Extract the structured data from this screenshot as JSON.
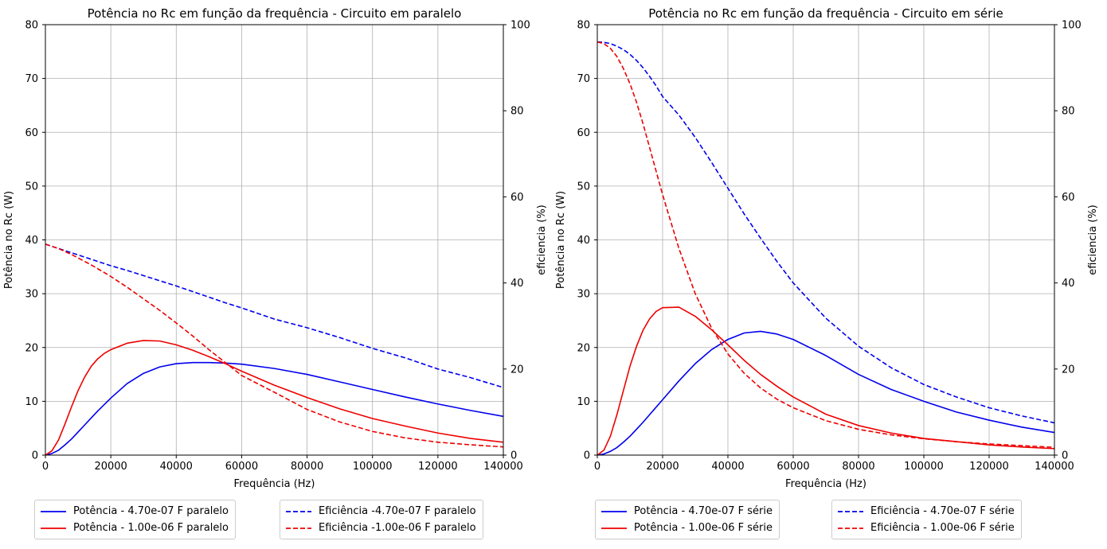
{
  "chart_data": [
    {
      "type": "line",
      "title": "Potência no Rc em função da frequência - Circuito em paralelo",
      "xlabel": "Frequência (Hz)",
      "ylabel": "Potência no Rc (W)",
      "y2label": "eficiencia (%)",
      "xlim": [
        0,
        140000
      ],
      "ylim": [
        0,
        80
      ],
      "y2lim": [
        0,
        100
      ],
      "xticks": [
        0,
        20000,
        40000,
        60000,
        80000,
        100000,
        120000,
        140000
      ],
      "yticks": [
        0,
        10,
        20,
        30,
        40,
        50,
        60,
        70,
        80
      ],
      "y2ticks": [
        0,
        20,
        40,
        60,
        80,
        100
      ],
      "grid": true,
      "legend_left_pos": "below-left",
      "legend_right_pos": "below-right",
      "x": [
        0,
        2000,
        4000,
        6000,
        8000,
        10000,
        12000,
        14000,
        16000,
        18000,
        20000,
        25000,
        30000,
        35000,
        40000,
        45000,
        50000,
        55000,
        60000,
        70000,
        80000,
        90000,
        100000,
        110000,
        120000,
        130000,
        140000
      ],
      "series": [
        {
          "name": "Potência - 4.70e-07 F paralelo",
          "axis": "left",
          "color": "#0000ee",
          "dash": "solid",
          "values": [
            0,
            0.3,
            0.9,
            1.9,
            3.0,
            4.3,
            5.6,
            6.9,
            8.2,
            9.4,
            10.6,
            13.3,
            15.2,
            16.4,
            17.0,
            17.2,
            17.2,
            17.1,
            16.9,
            16.1,
            15.0,
            13.6,
            12.2,
            10.8,
            9.5,
            8.3,
            7.2
          ]
        },
        {
          "name": "Potência - 1.00e-06 F paralelo",
          "axis": "left",
          "color": "#ee0000",
          "dash": "solid",
          "values": [
            0,
            0.8,
            2.8,
            5.8,
            9.0,
            12.0,
            14.5,
            16.5,
            17.9,
            18.9,
            19.6,
            20.8,
            21.3,
            21.2,
            20.5,
            19.5,
            18.3,
            17.0,
            15.6,
            13.0,
            10.7,
            8.6,
            6.8,
            5.4,
            4.1,
            3.1,
            2.4
          ]
        },
        {
          "name": "Eficiência -4.70e-07 F paralelo",
          "axis": "right",
          "color": "#0000ee",
          "dash": "dashed",
          "values": [
            49.0,
            48.5,
            48.0,
            47.5,
            47.0,
            46.5,
            46.0,
            45.5,
            45.0,
            44.5,
            44.0,
            42.9,
            41.7,
            40.5,
            39.3,
            38.0,
            36.7,
            35.4,
            34.2,
            31.6,
            29.6,
            27.3,
            24.8,
            22.6,
            20.0,
            18.0,
            15.7
          ]
        },
        {
          "name": "Eficiência -1.00e-06 F paralelo",
          "axis": "right",
          "color": "#ee0000",
          "dash": "dashed",
          "values": [
            49.0,
            48.5,
            48.0,
            47.3,
            46.6,
            45.8,
            45.0,
            44.2,
            43.3,
            42.4,
            41.5,
            39.0,
            36.3,
            33.6,
            30.7,
            27.7,
            24.5,
            21.5,
            18.5,
            14.6,
            10.6,
            7.7,
            5.5,
            4.0,
            3.0,
            2.4,
            1.9
          ]
        }
      ]
    },
    {
      "type": "line",
      "title": "Potência no Rc em função da frequência - Circuito em série",
      "xlabel": "Frequência (Hz)",
      "ylabel": "Potência no Rc (W)",
      "y2label": "eficiencia (%)",
      "xlim": [
        0,
        140000
      ],
      "ylim": [
        0,
        80
      ],
      "y2lim": [
        0,
        100
      ],
      "xticks": [
        0,
        20000,
        40000,
        60000,
        80000,
        100000,
        120000,
        140000
      ],
      "yticks": [
        0,
        10,
        20,
        30,
        40,
        50,
        60,
        70,
        80
      ],
      "y2ticks": [
        0,
        20,
        40,
        60,
        80,
        100
      ],
      "grid": true,
      "legend_left_pos": "below-left",
      "legend_right_pos": "below-right",
      "x": [
        0,
        2000,
        4000,
        6000,
        8000,
        10000,
        12000,
        14000,
        16000,
        18000,
        20000,
        25000,
        30000,
        35000,
        40000,
        45000,
        50000,
        55000,
        60000,
        70000,
        80000,
        90000,
        100000,
        110000,
        120000,
        130000,
        140000
      ],
      "series": [
        {
          "name": "Potência - 4.70e-07 F série",
          "axis": "left",
          "color": "#0000ee",
          "dash": "solid",
          "values": [
            0,
            0.2,
            0.7,
            1.4,
            2.4,
            3.5,
            4.8,
            6.1,
            7.5,
            8.9,
            10.3,
            13.8,
            17.0,
            19.6,
            21.5,
            22.7,
            23.0,
            22.5,
            21.5,
            18.5,
            15.0,
            12.2,
            10.0,
            8.0,
            6.5,
            5.2,
            4.2
          ]
        },
        {
          "name": "Potência - 1.00e-06 F série",
          "axis": "left",
          "color": "#ee0000",
          "dash": "solid",
          "values": [
            0,
            0.9,
            3.5,
            7.5,
            12.0,
            16.5,
            20.2,
            23.2,
            25.3,
            26.7,
            27.4,
            27.5,
            25.8,
            23.3,
            20.5,
            17.6,
            15.0,
            12.8,
            10.8,
            7.6,
            5.5,
            4.1,
            3.1,
            2.5,
            1.9,
            1.5,
            1.2
          ]
        },
        {
          "name": "Eficiência - 4.70e-07 F série",
          "axis": "right",
          "color": "#0000ee",
          "dash": "dashed",
          "values": [
            96.0,
            95.9,
            95.6,
            95.0,
            94.2,
            93.1,
            91.7,
            90.0,
            88.0,
            85.8,
            83.3,
            79.0,
            73.8,
            68.0,
            62.0,
            56.0,
            50.4,
            45.0,
            40.0,
            31.8,
            25.3,
            20.3,
            16.4,
            13.5,
            11.0,
            9.1,
            7.5
          ]
        },
        {
          "name": "Eficiência - 1.00e-06 F série",
          "axis": "right",
          "color": "#ee0000",
          "dash": "dashed",
          "values": [
            96.0,
            95.6,
            94.5,
            92.6,
            89.8,
            86.3,
            82.0,
            77.0,
            71.5,
            66.0,
            60.5,
            48.0,
            37.5,
            29.5,
            23.5,
            19.0,
            15.6,
            13.0,
            11.0,
            8.0,
            6.0,
            4.7,
            3.8,
            3.1,
            2.6,
            2.2,
            1.8
          ]
        }
      ]
    }
  ]
}
